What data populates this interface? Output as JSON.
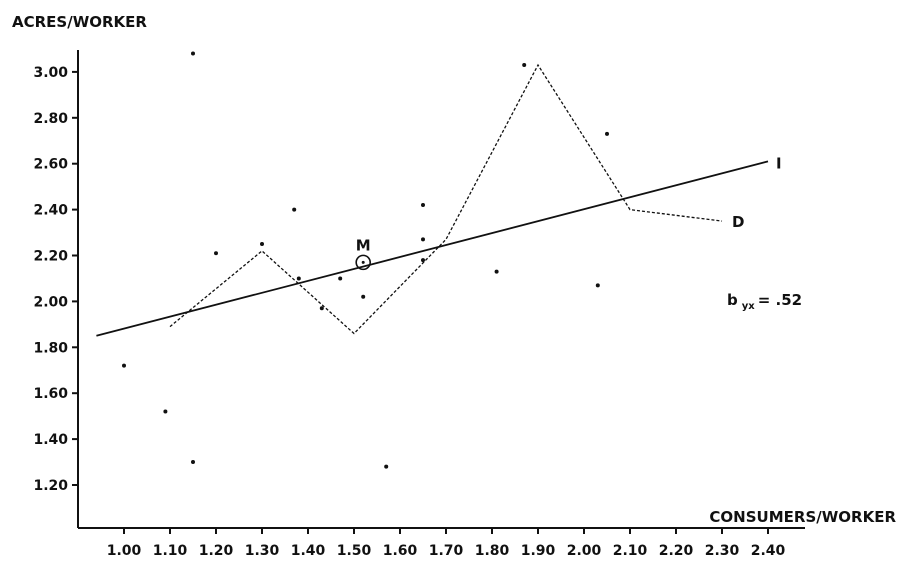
{
  "chart_data": {
    "type": "scatter",
    "title": "",
    "xlabel": "CONSUMERS/WORKER",
    "ylabel": "ACRES/WORKER",
    "xlim": [
      0.9,
      2.7
    ],
    "ylim": [
      1.05,
      3.2
    ],
    "x_ticks": [
      "1.00",
      "1.10",
      "1.20",
      "1.30",
      "1.40",
      "1.50",
      "1.60",
      "1.70",
      "1.80",
      "1.90",
      "2.00",
      "2.10",
      "2.20",
      "2.30",
      "2.40"
    ],
    "y_ticks": [
      "1.20",
      "1.40",
      "1.60",
      "1.80",
      "2.00",
      "2.20",
      "2.40",
      "2.60",
      "2.80",
      "3.00"
    ],
    "points": [
      {
        "x": 1.0,
        "y": 1.72
      },
      {
        "x": 1.09,
        "y": 1.52
      },
      {
        "x": 1.15,
        "y": 1.3
      },
      {
        "x": 1.15,
        "y": 3.08
      },
      {
        "x": 1.2,
        "y": 2.21
      },
      {
        "x": 1.3,
        "y": 2.25
      },
      {
        "x": 1.37,
        "y": 2.4
      },
      {
        "x": 1.38,
        "y": 2.1
      },
      {
        "x": 1.43,
        "y": 1.97
      },
      {
        "x": 1.47,
        "y": 2.1
      },
      {
        "x": 1.52,
        "y": 2.02
      },
      {
        "x": 1.57,
        "y": 1.28
      },
      {
        "x": 1.65,
        "y": 2.42
      },
      {
        "x": 1.65,
        "y": 2.27
      },
      {
        "x": 1.65,
        "y": 2.18
      },
      {
        "x": 1.81,
        "y": 2.13
      },
      {
        "x": 1.87,
        "y": 3.03
      },
      {
        "x": 2.03,
        "y": 2.07
      },
      {
        "x": 2.05,
        "y": 2.73
      }
    ],
    "series": [
      {
        "name": "I",
        "style": "solid",
        "points": [
          {
            "x": 0.94,
            "y": 1.85
          },
          {
            "x": 2.4,
            "y": 2.61
          }
        ]
      },
      {
        "name": "D",
        "style": "dashed",
        "points": [
          {
            "x": 1.1,
            "y": 1.89
          },
          {
            "x": 1.3,
            "y": 2.22
          },
          {
            "x": 1.5,
            "y": 1.86
          },
          {
            "x": 1.7,
            "y": 2.27
          },
          {
            "x": 1.9,
            "y": 3.03
          },
          {
            "x": 2.1,
            "y": 2.4
          },
          {
            "x": 2.3,
            "y": 2.35
          }
        ]
      }
    ],
    "mean_point": {
      "label": "M",
      "x": 1.52,
      "y": 2.17
    },
    "annotation": {
      "prefix": "b",
      "subscript": "yx",
      "suffix": "= .52"
    },
    "grid": false
  }
}
